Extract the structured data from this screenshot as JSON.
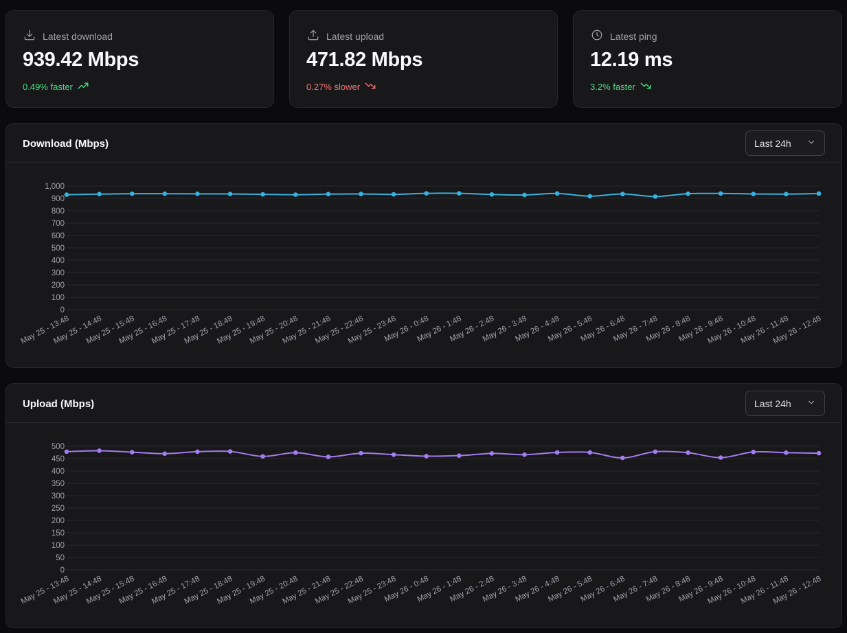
{
  "stats": {
    "download": {
      "label": "Latest download",
      "value": "939.42 Mbps",
      "delta": "0.49% faster",
      "trend": "up",
      "icon": "download-icon",
      "delta_color": "#4ade80"
    },
    "upload": {
      "label": "Latest upload",
      "value": "471.82 Mbps",
      "delta": "0.27% slower",
      "trend": "down",
      "icon": "upload-icon",
      "delta_color": "#f87171"
    },
    "ping": {
      "label": "Latest ping",
      "value": "12.19 ms",
      "delta": "3.2% faster",
      "trend": "down",
      "icon": "clock-icon",
      "delta_color": "#4ade80"
    }
  },
  "download_chart": {
    "title": "Download (Mbps)",
    "range_select": "Last 24h"
  },
  "upload_chart": {
    "title": "Upload (Mbps)",
    "range_select": "Last 24h"
  },
  "chart_data": [
    {
      "type": "line",
      "title": "Download (Mbps)",
      "color": "#38b2e0",
      "x": [
        "May 25 - 13:48",
        "May 25 - 14:48",
        "May 25 - 15:48",
        "May 25 - 16:48",
        "May 25 - 17:48",
        "May 25 - 18:48",
        "May 25 - 19:48",
        "May 25 - 20:48",
        "May 25 - 21:48",
        "May 25 - 22:48",
        "May 25 - 23:48",
        "May 26 - 0:48",
        "May 26 - 1:48",
        "May 26 - 2:48",
        "May 26 - 3:48",
        "May 26 - 4:48",
        "May 26 - 5:48",
        "May 26 - 6:48",
        "May 26 - 7:48",
        "May 26 - 8:48",
        "May 26 - 9:48",
        "May 26 - 10:48",
        "May 26 - 11:48",
        "May 26 - 12:48"
      ],
      "y": [
        930,
        935,
        938,
        938,
        937,
        936,
        933,
        930,
        935,
        936,
        933,
        941,
        941,
        932,
        928,
        940,
        918,
        936,
        915,
        938,
        940,
        936,
        935,
        939
      ],
      "ylim": [
        0,
        1000
      ],
      "yticks": [
        "0",
        "100",
        "200",
        "300",
        "400",
        "500",
        "600",
        "700",
        "800",
        "900",
        "1,000"
      ],
      "ytick_values": [
        0,
        100,
        200,
        300,
        400,
        500,
        600,
        700,
        800,
        900,
        1000
      ],
      "grid": true
    },
    {
      "type": "line",
      "title": "Upload (Mbps)",
      "color": "#a47cf0",
      "x": [
        "May 25 - 13:48",
        "May 25 - 14:48",
        "May 25 - 15:48",
        "May 25 - 16:48",
        "May 25 - 17:48",
        "May 25 - 18:48",
        "May 25 - 19:48",
        "May 25 - 20:48",
        "May 25 - 21:48",
        "May 25 - 22:48",
        "May 25 - 23:48",
        "May 26 - 0:48",
        "May 26 - 1:48",
        "May 26 - 2:48",
        "May 26 - 3:48",
        "May 26 - 4:48",
        "May 26 - 5:48",
        "May 26 - 6:48",
        "May 26 - 7:48",
        "May 26 - 8:48",
        "May 26 - 9:48",
        "May 26 - 10:48",
        "May 26 - 11:48",
        "May 26 - 12:48"
      ],
      "y": [
        478,
        482,
        476,
        470,
        478,
        479,
        459,
        474,
        457,
        472,
        466,
        460,
        462,
        471,
        466,
        475,
        475,
        453,
        478,
        474,
        454,
        477,
        474,
        472
      ],
      "ylim": [
        0,
        500
      ],
      "yticks": [
        "0",
        "50",
        "100",
        "150",
        "200",
        "250",
        "300",
        "350",
        "400",
        "450",
        "500"
      ],
      "ytick_values": [
        0,
        50,
        100,
        150,
        200,
        250,
        300,
        350,
        400,
        450,
        500
      ],
      "grid": true
    }
  ]
}
